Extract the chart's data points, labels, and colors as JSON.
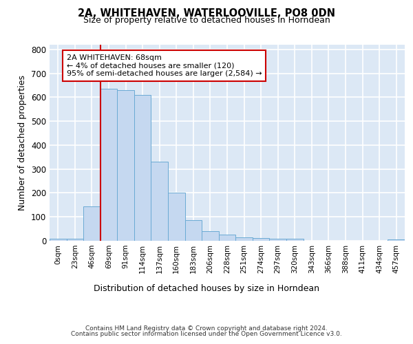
{
  "title_line1": "2A, WHITEHAVEN, WATERLOOVILLE, PO8 0DN",
  "title_line2": "Size of property relative to detached houses in Horndean",
  "xlabel": "Distribution of detached houses by size in Horndean",
  "ylabel": "Number of detached properties",
  "footer_line1": "Contains HM Land Registry data © Crown copyright and database right 2024.",
  "footer_line2": "Contains public sector information licensed under the Open Government Licence v3.0.",
  "annotation_line1": "2A WHITEHAVEN: 68sqm",
  "annotation_line2": "← 4% of detached houses are smaller (120)",
  "annotation_line3": "95% of semi-detached houses are larger (2,584) →",
  "bar_labels": [
    "0sqm",
    "23sqm",
    "46sqm",
    "69sqm",
    "91sqm",
    "114sqm",
    "137sqm",
    "160sqm",
    "183sqm",
    "206sqm",
    "228sqm",
    "251sqm",
    "274sqm",
    "297sqm",
    "320sqm",
    "343sqm",
    "366sqm",
    "388sqm",
    "411sqm",
    "434sqm",
    "457sqm"
  ],
  "bar_heights": [
    8,
    10,
    143,
    637,
    630,
    609,
    330,
    200,
    85,
    40,
    25,
    13,
    12,
    10,
    8,
    0,
    0,
    0,
    0,
    0,
    7
  ],
  "bar_color": "#c5d8f0",
  "bar_edge_color": "#6aaad4",
  "vline_color": "#cc0000",
  "annotation_box_color": "#cc0000",
  "ylim": [
    0,
    820
  ],
  "yticks": [
    0,
    100,
    200,
    300,
    400,
    500,
    600,
    700,
    800
  ],
  "fig_background": "#ffffff",
  "axes_background": "#dce8f5",
  "grid_color": "#ffffff"
}
